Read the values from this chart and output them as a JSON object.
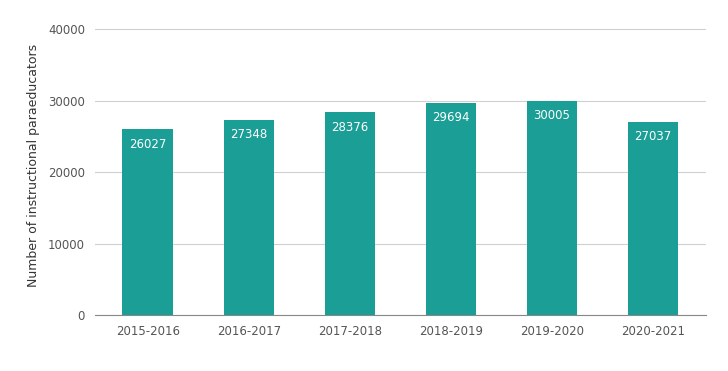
{
  "categories": [
    "2015-2016",
    "2016-2017",
    "2017-2018",
    "2018-2019",
    "2019-2020",
    "2020-2021"
  ],
  "values": [
    26027,
    27348,
    28376,
    29694,
    30005,
    27037
  ],
  "bar_color": "#1a9e96",
  "label_color": "#ffffff",
  "ylabel": "Number of instructional paraeducators",
  "ylim": [
    0,
    42000
  ],
  "yticks": [
    0,
    10000,
    20000,
    30000,
    40000
  ],
  "background_color": "#ffffff",
  "grid_color": "#d0d0d0",
  "label_fontsize": 8.5,
  "ylabel_fontsize": 9,
  "tick_fontsize": 8.5,
  "bar_width": 0.5
}
